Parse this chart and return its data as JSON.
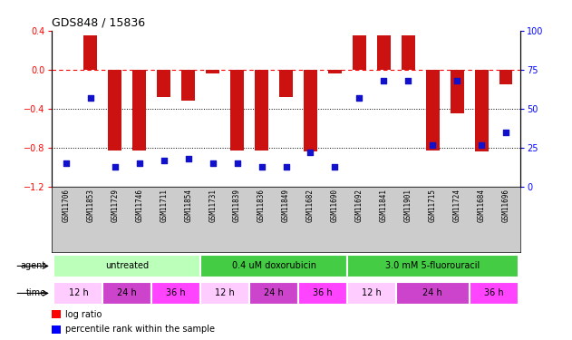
{
  "title": "GDS848 / 15836",
  "samples": [
    "GSM11706",
    "GSM11853",
    "GSM11729",
    "GSM11746",
    "GSM11711",
    "GSM11854",
    "GSM11731",
    "GSM11839",
    "GSM11836",
    "GSM11849",
    "GSM11682",
    "GSM11690",
    "GSM11692",
    "GSM11841",
    "GSM11901",
    "GSM11715",
    "GSM11724",
    "GSM11684",
    "GSM11696"
  ],
  "log_ratio": [
    0.0,
    0.35,
    -0.83,
    -0.83,
    -0.28,
    -0.32,
    -0.04,
    -0.83,
    -0.83,
    -0.28,
    -0.84,
    -0.04,
    0.35,
    0.35,
    0.35,
    -0.83,
    -0.45,
    -0.84,
    -0.15
  ],
  "percentile_rank": [
    15,
    57,
    13,
    15,
    17,
    18,
    15,
    15,
    13,
    13,
    22,
    13,
    57,
    68,
    68,
    27,
    68,
    27,
    35
  ],
  "bar_color": "#cc1111",
  "dot_color": "#1111cc",
  "ylim_left": [
    -1.2,
    0.4
  ],
  "ylim_right": [
    0,
    100
  ],
  "bar_width": 0.55,
  "dot_size": 25,
  "agent_defs": [
    [
      0,
      6,
      "untreated",
      "#bbffbb",
      "#44bb44"
    ],
    [
      6,
      12,
      "0.4 uM doxorubicin",
      "#44cc44",
      "#44bb44"
    ],
    [
      12,
      19,
      "3.0 mM 5-fluorouracil",
      "#44cc44",
      "#44bb44"
    ]
  ],
  "time_defs": [
    [
      0,
      2,
      "12 h",
      "#ffccff"
    ],
    [
      2,
      4,
      "24 h",
      "#cc44cc"
    ],
    [
      4,
      6,
      "36 h",
      "#ff44ff"
    ],
    [
      6,
      8,
      "12 h",
      "#ffccff"
    ],
    [
      8,
      10,
      "24 h",
      "#cc44cc"
    ],
    [
      10,
      12,
      "36 h",
      "#ff44ff"
    ],
    [
      12,
      14,
      "12 h",
      "#ffccff"
    ],
    [
      14,
      17,
      "24 h",
      "#cc44cc"
    ],
    [
      17,
      19,
      "36 h",
      "#ff44ff"
    ]
  ],
  "fig_width": 6.31,
  "fig_height": 3.75,
  "dpi": 100
}
